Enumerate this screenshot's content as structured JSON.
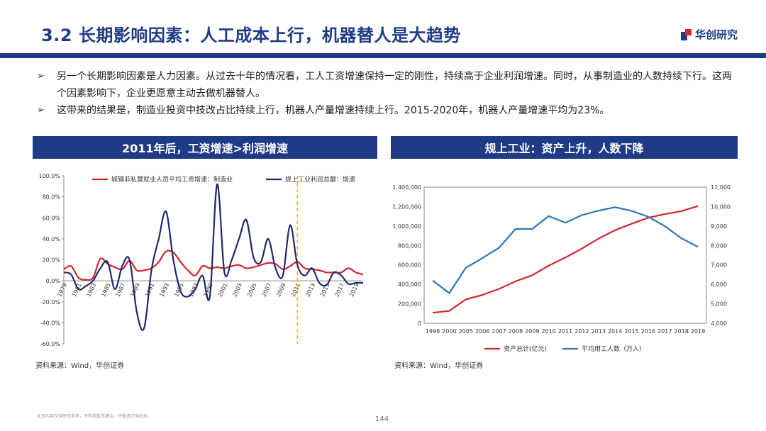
{
  "header": {
    "title": "3.2 长期影响因素：人工成本上行，机器替人是大趋势",
    "brand": "华创研究"
  },
  "bullets": [
    {
      "marker": "➢",
      "text": "另一个长期影响因素是人力因素。从过去十年的情况看，工人工资增速保持一定的刚性，持续高于企业利润增速。同时，从事制造业的人数持续下行。这两个因素影响下，企业更愿意主动去做机器替人。"
    },
    {
      "marker": "➢",
      "text": "这带来的结果是，制造业投资中技改占比持续上行，机器人产量增速持续上行。2015-2020年，机器人产量增速平均为23%。"
    }
  ],
  "panels": {
    "left": {
      "title": "2011年后，工资增速>利润增速",
      "source": "资料来源：Wind，华创证券"
    },
    "right": {
      "title": "规上工业：资产上升，人数下降",
      "source": "资料来源：Wind，华创证券"
    }
  },
  "footer": {
    "disclaimer": "此页内容仅供研究参考，不构成投资建议。转载请注明出处。",
    "page": "144"
  },
  "colors": {
    "navy": "#1f3b86",
    "red": "#d5252c",
    "blue": "#2e75b6"
  },
  "chart_data": [
    {
      "type": "line",
      "ylim": [
        -60,
        100
      ],
      "yticks": [
        "100.0%",
        "80.0%",
        "60.0%",
        "40.0%",
        "20.0%",
        "0.0%",
        "-20.0%",
        "-40.0%",
        "-60.0%"
      ],
      "ytick_values": [
        100,
        80,
        60,
        40,
        20,
        0,
        -20,
        -40,
        -60
      ],
      "xticks": [
        "1979",
        "1981",
        "1983",
        "1985",
        "1987",
        "1989",
        "1991",
        "1993",
        "1995",
        "1997",
        "1999",
        "2001",
        "2003",
        "2005",
        "2007",
        "2009",
        "2011",
        "2013",
        "2015",
        "2017",
        "2019"
      ],
      "xlim": [
        1979,
        2020
      ],
      "marker_year": 2011,
      "legend_position": "top",
      "series": [
        {
          "name": "城镇非私营就业人员平均工资增速：制造业",
          "color": "#d5252c",
          "x": [
            1979,
            1980,
            1981,
            1982,
            1983,
            1984,
            1985,
            1986,
            1987,
            1988,
            1989,
            1990,
            1991,
            1992,
            1993,
            1994,
            1995,
            1996,
            1997,
            1998,
            1999,
            2000,
            2001,
            2002,
            2003,
            2004,
            2005,
            2006,
            2007,
            2008,
            2009,
            2010,
            2011,
            2012,
            2013,
            2014,
            2015,
            2016,
            2017,
            2018,
            2019,
            2020
          ],
          "values": [
            11,
            14,
            3,
            1,
            3,
            21,
            16,
            13,
            11,
            19,
            10,
            10,
            12,
            18,
            28,
            27,
            18,
            10,
            5,
            14,
            12,
            13,
            12,
            14,
            15,
            12,
            13,
            15,
            17,
            16,
            11,
            14,
            18,
            12,
            11,
            10,
            8,
            8,
            8,
            12,
            8,
            6
          ]
        },
        {
          "name": "规上工业利润总额：增速",
          "color": "#1f2a6b",
          "x": [
            1979,
            1980,
            1981,
            1982,
            1983,
            1984,
            1985,
            1986,
            1987,
            1988,
            1989,
            1990,
            1991,
            1992,
            1993,
            1994,
            1995,
            1996,
            1997,
            1998,
            1999,
            2000,
            2001,
            2002,
            2003,
            2004,
            2005,
            2006,
            2007,
            2008,
            2009,
            2010,
            2011,
            2012,
            2013,
            2014,
            2015,
            2016,
            2017,
            2018,
            2019,
            2020
          ],
          "values": [
            8,
            6,
            -8,
            -5,
            0,
            12,
            18,
            -8,
            14,
            20,
            -30,
            -45,
            10,
            40,
            66,
            20,
            -10,
            -15,
            -8,
            5,
            -15,
            92,
            8,
            20,
            40,
            58,
            22,
            18,
            40,
            12,
            5,
            53,
            15,
            5,
            12,
            -2,
            -4,
            8,
            5,
            -3,
            -2,
            -2
          ]
        }
      ]
    },
    {
      "type": "line",
      "categories": [
        "1998",
        "2000",
        "2005",
        "2006",
        "2007",
        "2008",
        "2009",
        "2010",
        "2011",
        "2012",
        "2013",
        "2014",
        "2015",
        "2016",
        "2017",
        "2018",
        "2019"
      ],
      "ylim_left": [
        0,
        1400000
      ],
      "ylim_right": [
        4000,
        11000
      ],
      "yticks_left": [
        "1,400,000",
        "1,200,000",
        "1,000,000",
        "800,000",
        "600,000",
        "400,000",
        "200,000",
        "0"
      ],
      "ytick_values_left": [
        1400000,
        1200000,
        1000000,
        800000,
        600000,
        400000,
        200000,
        0
      ],
      "yticks_right": [
        "11,000",
        "10,000",
        "9,000",
        "8,000",
        "7,000",
        "6,000",
        "5,000",
        "4,000"
      ],
      "ytick_values_right": [
        11000,
        10000,
        9000,
        8000,
        7000,
        6000,
        5000,
        4000
      ],
      "legend_position": "bottom",
      "series": [
        {
          "name": "资产总计(亿元)",
          "axis": "left",
          "color": "#d5252c",
          "values": [
            108000,
            127000,
            245000,
            291000,
            353000,
            431000,
            494000,
            592000,
            675000,
            768000,
            870000,
            957000,
            1023000,
            1085000,
            1122000,
            1153000,
            1205000
          ]
        },
        {
          "name": "平均用工人数（万人）",
          "axis": "right",
          "color": "#2e75b6",
          "values": [
            6200,
            5550,
            6850,
            7350,
            7880,
            8850,
            8850,
            9510,
            9170,
            9560,
            9790,
            9970,
            9780,
            9480,
            8990,
            8370,
            7930
          ]
        }
      ]
    }
  ]
}
